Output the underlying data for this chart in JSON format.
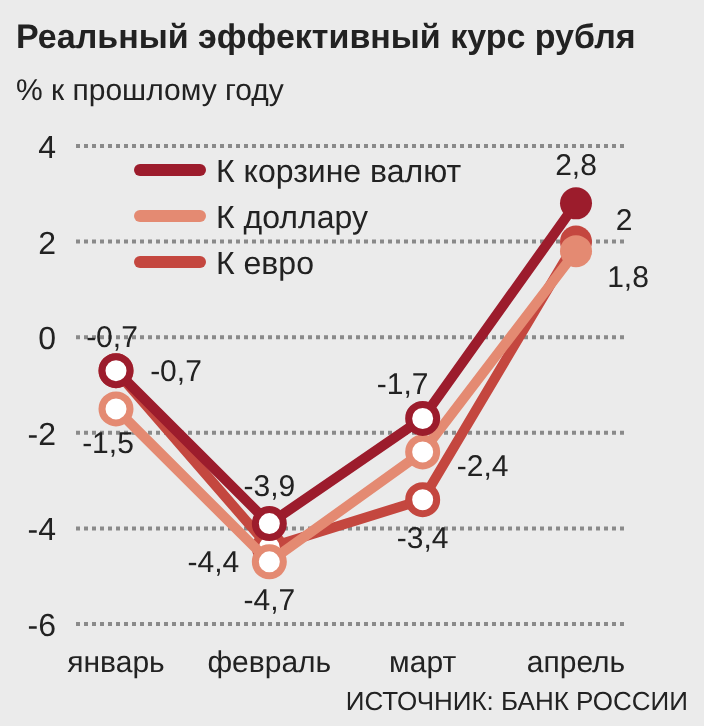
{
  "chart_data": {
    "type": "line",
    "title": "Реальный эффективный курс рубля",
    "subtitle": "% к прошлому году",
    "categories": [
      "январь",
      "февраль",
      "март",
      "апрель"
    ],
    "series": [
      {
        "name": "К корзине валют",
        "color": "#9c1c2c",
        "values": [
          -0.7,
          -3.9,
          -1.7,
          2.8
        ],
        "value_labels": [
          "-0,7",
          "-3,9",
          "-1,7",
          "2,8"
        ]
      },
      {
        "name": "К доллару",
        "color": "#e48a72",
        "values": [
          -1.5,
          -4.7,
          -2.4,
          1.8
        ],
        "value_labels": [
          "-1,5",
          "-4,7",
          "-2,4",
          "1,8"
        ]
      },
      {
        "name": "К евро",
        "color": "#c4473f",
        "values": [
          -0.7,
          -4.4,
          -3.4,
          2
        ],
        "value_labels": [
          "-0,7",
          "-4,4",
          "-3,4",
          "2"
        ]
      }
    ],
    "ylim": [
      -6,
      4
    ],
    "yticks": [
      -6,
      -4,
      -2,
      0,
      2,
      4
    ],
    "grid": "y",
    "legend": "top left",
    "marker": "circle",
    "annotations": [
      "ИСТОЧНИК: БАНК РОССИИ"
    ]
  }
}
